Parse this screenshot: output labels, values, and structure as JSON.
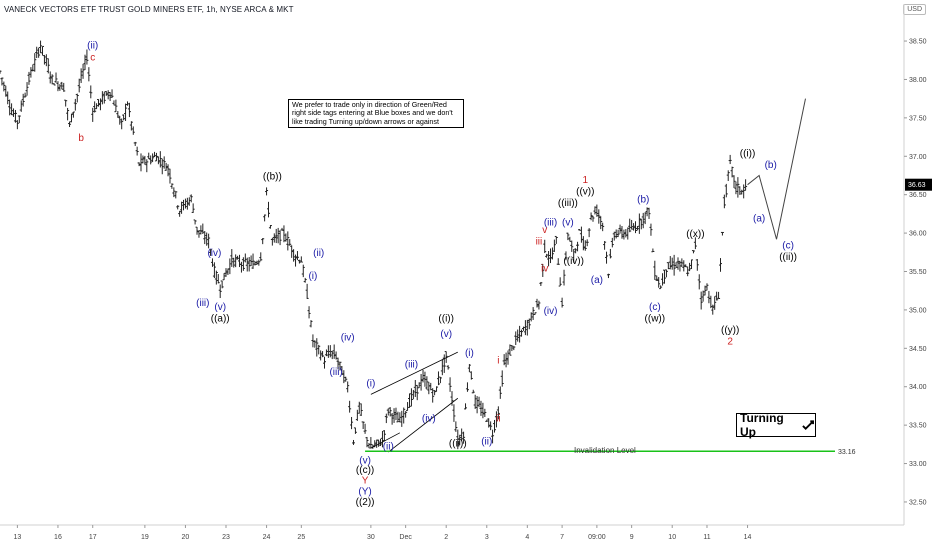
{
  "header": {
    "title": "VANECK VECTORS ETF TRUST GOLD MINERS ETF, 1h, NYSE ARCA & MKT",
    "currency": "USD"
  },
  "note_text": "We prefer to trade only in direction of Green/Red right side tags entering at Blue boxes and we don't like trading Turning up/down arrows or against",
  "turning_label": "Turning Up",
  "invalidation_label": "Invalidation Level",
  "colors": {
    "blue": "#1a1aa6",
    "red": "#cc2222",
    "black": "#000000",
    "green": "#19c219",
    "bar": "#222222"
  },
  "chart_data": {
    "type": "line",
    "ylim": [
      32.2,
      38.8
    ],
    "yticks": [
      "32.50",
      "33.00",
      "33.50",
      "34.00",
      "34.50",
      "35.00",
      "35.50",
      "36.00",
      "36.50",
      "37.00",
      "37.50",
      "38.00",
      "38.50"
    ],
    "last_price": "36.63",
    "invalidation_price": "33.16",
    "x_ticks": [
      "13",
      "16",
      "17",
      "19",
      "20",
      "23",
      "24",
      "25",
      "30",
      "Dec",
      "2",
      "3",
      "4",
      "7",
      "09:00",
      "9",
      "10",
      "11",
      "14"
    ],
    "price_path": [
      [
        0,
        38.1
      ],
      [
        2,
        37.6
      ],
      [
        3,
        37.45
      ],
      [
        5,
        38.0
      ],
      [
        7,
        38.45
      ],
      [
        9,
        38.0
      ],
      [
        11,
        37.9
      ],
      [
        12,
        37.4
      ],
      [
        15,
        38.3
      ],
      [
        16,
        37.6
      ],
      [
        19,
        37.85
      ],
      [
        21,
        37.4
      ],
      [
        22,
        37.7
      ],
      [
        24,
        36.9
      ],
      [
        27,
        37.0
      ],
      [
        29,
        36.85
      ],
      [
        31,
        36.3
      ],
      [
        33,
        36.45
      ],
      [
        34,
        36.05
      ],
      [
        36,
        35.9
      ],
      [
        37,
        35.5
      ],
      [
        38,
        35.3
      ],
      [
        40,
        35.65
      ],
      [
        42,
        35.6
      ],
      [
        44,
        35.6
      ],
      [
        45,
        35.7
      ],
      [
        46,
        36.5
      ],
      [
        47,
        35.9
      ],
      [
        49,
        36.0
      ],
      [
        50,
        35.85
      ],
      [
        51,
        35.7
      ],
      [
        52,
        35.65
      ],
      [
        53,
        35.2
      ],
      [
        54,
        34.6
      ],
      [
        56,
        34.35
      ],
      [
        57,
        34.45
      ],
      [
        58,
        34.4
      ],
      [
        60,
        34.0
      ],
      [
        61,
        33.3
      ],
      [
        62,
        33.75
      ],
      [
        63,
        33.4
      ],
      [
        64,
        33.2
      ],
      [
        66,
        33.3
      ],
      [
        67,
        33.7
      ],
      [
        69,
        33.55
      ],
      [
        71,
        33.85
      ],
      [
        73,
        34.1
      ],
      [
        75,
        33.9
      ],
      [
        77,
        34.4
      ],
      [
        79,
        33.3
      ],
      [
        80,
        33.4
      ],
      [
        81,
        34.3
      ],
      [
        82,
        33.8
      ],
      [
        84,
        33.6
      ],
      [
        85,
        33.4
      ],
      [
        86,
        33.7
      ],
      [
        87,
        34.3
      ],
      [
        89,
        34.6
      ],
      [
        91,
        34.8
      ],
      [
        93,
        35.1
      ],
      [
        94,
        35.8
      ],
      [
        95,
        35.65
      ],
      [
        96,
        35.9
      ],
      [
        97,
        35.1
      ],
      [
        98,
        36.0
      ],
      [
        99,
        35.7
      ],
      [
        100,
        36.0
      ],
      [
        101,
        35.8
      ],
      [
        102,
        36.2
      ],
      [
        103,
        36.3
      ],
      [
        104,
        36.1
      ],
      [
        105,
        35.5
      ],
      [
        106,
        36.0
      ],
      [
        108,
        36.0
      ],
      [
        110,
        36.1
      ],
      [
        112,
        36.3
      ],
      [
        113,
        35.5
      ],
      [
        114,
        35.3
      ],
      [
        115,
        35.55
      ],
      [
        117,
        35.6
      ],
      [
        119,
        35.5
      ],
      [
        120,
        35.85
      ],
      [
        121,
        35.15
      ],
      [
        122,
        35.3
      ],
      [
        123,
        35.0
      ],
      [
        124,
        35.2
      ],
      [
        125,
        36.4
      ],
      [
        126,
        36.9
      ],
      [
        127,
        36.6
      ],
      [
        128,
        36.55
      ],
      [
        129,
        36.63
      ]
    ],
    "projection": [
      [
        129,
        36.63
      ],
      [
        131,
        36.75
      ],
      [
        134,
        35.92
      ],
      [
        139,
        37.75
      ]
    ],
    "labels": [
      {
        "text": "(ii)",
        "x": 16,
        "y": 38.4,
        "color": "blue"
      },
      {
        "text": "c",
        "x": 16,
        "y": 38.25,
        "color": "red"
      },
      {
        "text": "b",
        "x": 14,
        "y": 37.2,
        "color": "red"
      },
      {
        "text": "((b))",
        "x": 47,
        "y": 36.7,
        "color": "black"
      },
      {
        "text": "(iv)",
        "x": 37,
        "y": 35.7,
        "color": "blue"
      },
      {
        "text": "(iii)",
        "x": 35,
        "y": 35.05,
        "color": "blue"
      },
      {
        "text": "(v)",
        "x": 38,
        "y": 35.0,
        "color": "blue"
      },
      {
        "text": "((a))",
        "x": 38,
        "y": 34.85,
        "color": "black"
      },
      {
        "text": "(ii)",
        "x": 55,
        "y": 35.7,
        "color": "blue"
      },
      {
        "text": "(i)",
        "x": 54,
        "y": 35.4,
        "color": "blue"
      },
      {
        "text": "(iv)",
        "x": 60,
        "y": 34.6,
        "color": "blue"
      },
      {
        "text": "(iii)",
        "x": 58,
        "y": 34.15,
        "color": "blue"
      },
      {
        "text": "(i)",
        "x": 64,
        "y": 34.0,
        "color": "blue"
      },
      {
        "text": "(iii)",
        "x": 71,
        "y": 34.25,
        "color": "blue"
      },
      {
        "text": "(v)",
        "x": 77,
        "y": 34.65,
        "color": "blue"
      },
      {
        "text": "((i))",
        "x": 77,
        "y": 34.85,
        "color": "black"
      },
      {
        "text": "(iv)",
        "x": 74,
        "y": 33.55,
        "color": "blue"
      },
      {
        "text": "(ii)",
        "x": 67,
        "y": 33.18,
        "color": "blue"
      },
      {
        "text": "((ii))",
        "x": 79,
        "y": 33.22,
        "color": "black"
      },
      {
        "text": "(i)",
        "x": 81,
        "y": 34.4,
        "color": "blue"
      },
      {
        "text": "(ii)",
        "x": 84,
        "y": 33.25,
        "color": "blue"
      },
      {
        "text": "i",
        "x": 86,
        "y": 34.3,
        "color": "red"
      },
      {
        "text": "ii",
        "x": 86,
        "y": 33.55,
        "color": "red"
      },
      {
        "text": "(v)",
        "x": 63,
        "y": 33.0,
        "color": "blue"
      },
      {
        "text": "((c))",
        "x": 63,
        "y": 32.88,
        "color": "black"
      },
      {
        "text": "Y",
        "x": 63,
        "y": 32.74,
        "color": "red"
      },
      {
        "text": "(Y)",
        "x": 63,
        "y": 32.6,
        "color": "blue"
      },
      {
        "text": "((2))",
        "x": 63,
        "y": 32.46,
        "color": "black"
      },
      {
        "text": "iii",
        "x": 93,
        "y": 35.85,
        "color": "red"
      },
      {
        "text": "iv",
        "x": 94,
        "y": 35.5,
        "color": "red"
      },
      {
        "text": "v",
        "x": 94,
        "y": 36.0,
        "color": "red"
      },
      {
        "text": "(iii)",
        "x": 95,
        "y": 36.1,
        "color": "blue"
      },
      {
        "text": "(v)",
        "x": 98,
        "y": 36.1,
        "color": "blue"
      },
      {
        "text": "((iii))",
        "x": 98,
        "y": 36.35,
        "color": "black"
      },
      {
        "text": "((v))",
        "x": 101,
        "y": 36.5,
        "color": "black"
      },
      {
        "text": "1",
        "x": 101,
        "y": 36.65,
        "color": "red"
      },
      {
        "text": "((iv))",
        "x": 99,
        "y": 35.6,
        "color": "black"
      },
      {
        "text": "(iv)",
        "x": 95,
        "y": 34.95,
        "color": "blue"
      },
      {
        "text": "(a)",
        "x": 103,
        "y": 35.35,
        "color": "blue"
      },
      {
        "text": "(b)",
        "x": 111,
        "y": 36.4,
        "color": "blue"
      },
      {
        "text": "(c)",
        "x": 113,
        "y": 35.0,
        "color": "blue"
      },
      {
        "text": "((w))",
        "x": 113,
        "y": 34.85,
        "color": "black"
      },
      {
        "text": "((x))",
        "x": 120,
        "y": 35.95,
        "color": "black"
      },
      {
        "text": "((y))",
        "x": 126,
        "y": 34.7,
        "color": "black"
      },
      {
        "text": "2",
        "x": 126,
        "y": 34.55,
        "color": "red"
      },
      {
        "text": "((i))",
        "x": 129,
        "y": 37.0,
        "color": "black"
      },
      {
        "text": "(b)",
        "x": 133,
        "y": 36.85,
        "color": "blue"
      },
      {
        "text": "(a)",
        "x": 131,
        "y": 36.15,
        "color": "blue"
      },
      {
        "text": "(c)",
        "x": 136,
        "y": 35.8,
        "color": "blue"
      },
      {
        "text": "((ii))",
        "x": 136,
        "y": 35.65,
        "color": "black"
      }
    ]
  }
}
